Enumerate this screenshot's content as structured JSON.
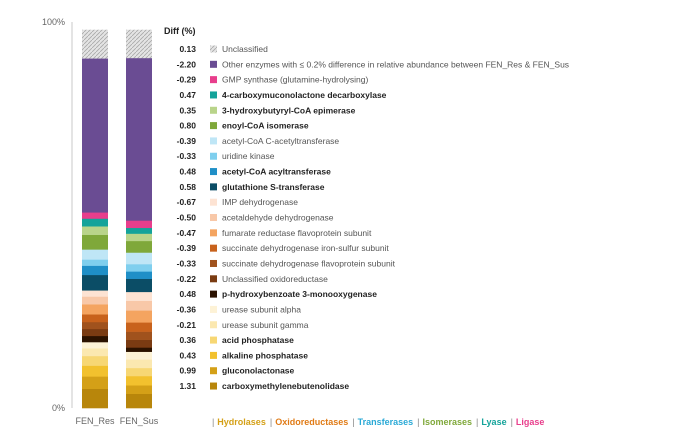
{
  "chart_data": {
    "type": "bar",
    "stacked": true,
    "percent": true,
    "categories": [
      "FEN_Res",
      "FEN_Sus"
    ],
    "y_ticks": [
      "100%",
      "0%"
    ],
    "diff_header": "Diff (%)",
    "series": [
      {
        "name": "carboxymethylenebutenolidase",
        "diff": "1.31",
        "bold": true,
        "color": "#b8860b",
        "values": [
          5.0,
          3.7
        ]
      },
      {
        "name": "gluconolactonase",
        "diff": "0.99",
        "bold": true,
        "color": "#d4a017",
        "values": [
          3.2,
          2.2
        ]
      },
      {
        "name": "alkaline phosphatase",
        "diff": "0.43",
        "bold": true,
        "color": "#f2c12e",
        "values": [
          2.8,
          2.4
        ]
      },
      {
        "name": "acid phosphatase",
        "diff": "0.36",
        "bold": true,
        "color": "#f7d774",
        "values": [
          2.5,
          2.1
        ]
      },
      {
        "name": "urease subunit gamma",
        "diff": "-0.21",
        "bold": false,
        "color": "#fbe8b0",
        "values": [
          2.0,
          2.2
        ]
      },
      {
        "name": "urease subunit alpha",
        "diff": "-0.36",
        "bold": false,
        "color": "#fdf2d6",
        "values": [
          1.6,
          2.0
        ]
      },
      {
        "name": "p-hydroxybenzoate 3-monooxygenase",
        "diff": "0.48",
        "bold": true,
        "color": "#2b1200",
        "values": [
          1.6,
          1.1
        ]
      },
      {
        "name": "Unclassified oxidoreductase",
        "diff": "-0.22",
        "bold": false,
        "color": "#7a3b12",
        "values": [
          1.8,
          2.0
        ]
      },
      {
        "name": "succinate dehydrogenase flavoprotein subunit",
        "diff": "-0.33",
        "bold": false,
        "color": "#a0521d",
        "values": [
          1.8,
          2.1
        ]
      },
      {
        "name": "succinate dehydrogenase iron-sulfur subunit",
        "diff": "-0.39",
        "bold": false,
        "color": "#c8621c",
        "values": [
          2.0,
          2.4
        ]
      },
      {
        "name": "fumarate reductase flavoprotein subunit",
        "diff": "-0.47",
        "bold": false,
        "color": "#f4a460",
        "values": [
          2.6,
          3.1
        ]
      },
      {
        "name": "acetaldehyde dehydrogenase",
        "diff": "-0.50",
        "bold": false,
        "color": "#f8c8a8",
        "values": [
          2.0,
          2.5
        ]
      },
      {
        "name": "IMP dehydrogenase",
        "diff": "-0.67",
        "bold": false,
        "color": "#fde3d3",
        "values": [
          1.6,
          2.3
        ]
      },
      {
        "name": "glutathione S-transferase",
        "diff": "0.58",
        "bold": true,
        "color": "#0b4d66",
        "values": [
          4.0,
          3.4
        ]
      },
      {
        "name": "acetyl-CoA acyltransferase",
        "diff": "0.48",
        "bold": true,
        "color": "#1f8fc7",
        "values": [
          2.4,
          1.9
        ]
      },
      {
        "name": "uridine kinase",
        "diff": "-0.33",
        "bold": false,
        "color": "#7fcfee",
        "values": [
          1.6,
          1.9
        ]
      },
      {
        "name": "acetyl-CoA C-acetyltransferase",
        "diff": "-0.39",
        "bold": false,
        "color": "#bfe6f6",
        "values": [
          2.6,
          3.0
        ]
      },
      {
        "name": "enoyl-CoA isomerase",
        "diff": "0.80",
        "bold": true,
        "color": "#7fa83a",
        "values": [
          3.8,
          3.0
        ]
      },
      {
        "name": "3-hydroxybutyryl-CoA epimerase",
        "diff": "0.35",
        "bold": true,
        "color": "#b9d48a",
        "values": [
          2.2,
          1.9
        ]
      },
      {
        "name": "4-carboxymuconolactone decarboxylase",
        "diff": "0.47",
        "bold": true,
        "color": "#14a39a",
        "values": [
          2.0,
          1.5
        ]
      },
      {
        "name": "GMP synthase (glutamine-hydrolysing)",
        "diff": "-0.29",
        "bold": false,
        "color": "#e83e8c",
        "values": [
          1.6,
          1.9
        ]
      },
      {
        "name": "Other enzymes with ≤ 0.2% difference in relative abundance between FEN_Res & FEN_Sus",
        "diff": "-2.20",
        "bold": false,
        "color": "#6a4c93",
        "values": [
          39.9,
          42.1
        ]
      },
      {
        "name": "Unclassified",
        "diff": "0.13",
        "bold": false,
        "color": "#dcdcdc",
        "values": [
          7.4,
          7.3
        ],
        "pattern": true
      }
    ],
    "enzyme_classes": [
      {
        "name": "Hydrolases",
        "color": "#d4a017"
      },
      {
        "name": "Oxidoreductases",
        "color": "#e07b16"
      },
      {
        "name": "Transferases",
        "color": "#2aa9d6"
      },
      {
        "name": "Isomerases",
        "color": "#7fa83a"
      },
      {
        "name": "Lyase",
        "color": "#14a39a"
      },
      {
        "name": "Ligase",
        "color": "#e83e8c"
      }
    ]
  }
}
